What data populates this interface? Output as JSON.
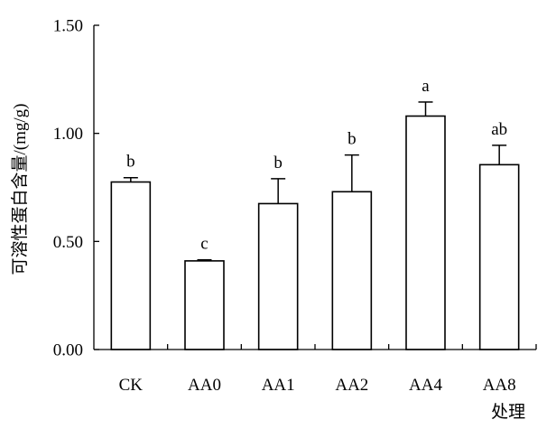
{
  "chart_data": {
    "type": "bar",
    "ylabel": "可溶性蛋白含量/(mg/g)",
    "xlabel": "处理",
    "ylim": [
      0,
      1.5
    ],
    "yticks": [
      "0.00",
      "0.50",
      "1.00",
      "1.50"
    ],
    "grid": false,
    "categories": [
      "CK",
      "AA0",
      "AA1",
      "AA2",
      "AA4",
      "AA8"
    ],
    "values": [
      0.775,
      0.41,
      0.675,
      0.73,
      1.08,
      0.855
    ],
    "errors": [
      0.02,
      0.005,
      0.115,
      0.17,
      0.065,
      0.09
    ],
    "significance": [
      "b",
      "c",
      "b",
      "b",
      "a",
      "ab"
    ]
  }
}
